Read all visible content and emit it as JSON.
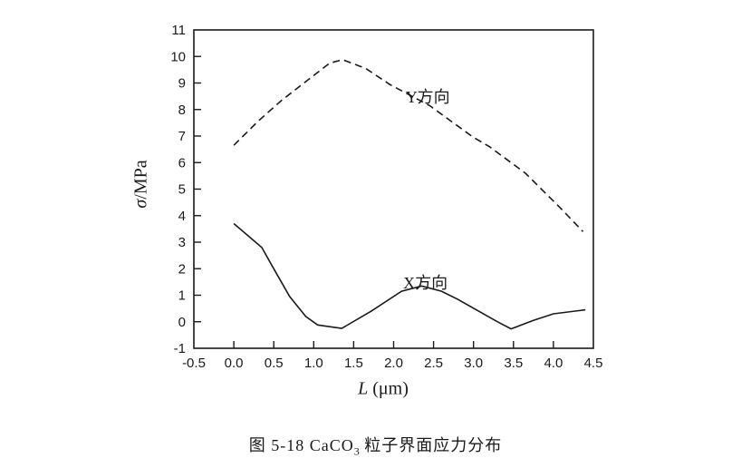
{
  "figure_caption": {
    "prefix": "图 5-18 CaCO",
    "subscript": "3",
    "suffix": " 粒子界面应力分布"
  },
  "chart_data": {
    "type": "line",
    "title": "",
    "xlabel": {
      "symbol": "L",
      "rest": " (μm)"
    },
    "ylabel": {
      "symbol": "σ",
      "rest": "/MPa"
    },
    "xlim": [
      -0.5,
      4.5
    ],
    "ylim": [
      -1,
      11
    ],
    "x_ticks": [
      -0.5,
      0.0,
      0.5,
      1.0,
      1.5,
      2.0,
      2.5,
      3.0,
      3.5,
      4.0,
      4.5
    ],
    "x_tick_labels": [
      "-0.5",
      "0.0",
      "0.5",
      "1.0",
      "1.5",
      "2.0",
      "2.5",
      "3.0",
      "3.5",
      "4.0",
      "4.5"
    ],
    "y_ticks": [
      -1,
      0,
      1,
      2,
      3,
      4,
      5,
      6,
      7,
      8,
      9,
      10,
      11
    ],
    "y_tick_labels": [
      "-1",
      "0",
      "1",
      "2",
      "3",
      "4",
      "5",
      "6",
      "7",
      "8",
      "9",
      "10",
      "11"
    ],
    "grid": false,
    "legend_position": "inline-annotations",
    "line_color": "#1a1a1a",
    "background_color": "#ffffff",
    "series": [
      {
        "name": "Y方向",
        "line_style": "dashed",
        "label_anchor": {
          "x": 2.15,
          "y": 8.26
        },
        "points": [
          [
            0.0,
            6.65
          ],
          [
            0.3,
            7.55
          ],
          [
            0.6,
            8.35
          ],
          [
            0.9,
            9.05
          ],
          [
            1.2,
            9.75
          ],
          [
            1.36,
            9.88
          ],
          [
            1.65,
            9.55
          ],
          [
            1.95,
            8.95
          ],
          [
            2.2,
            8.55
          ],
          [
            2.45,
            8.15
          ],
          [
            2.7,
            7.6
          ],
          [
            3.0,
            6.95
          ],
          [
            3.2,
            6.6
          ],
          [
            3.65,
            5.6
          ],
          [
            4.1,
            4.25
          ],
          [
            4.37,
            3.4
          ]
        ]
      },
      {
        "name": "X方向",
        "line_style": "solid",
        "label_anchor": {
          "x": 2.12,
          "y": 1.26
        },
        "points": [
          [
            0.0,
            3.7
          ],
          [
            0.35,
            2.8
          ],
          [
            0.5,
            2.0
          ],
          [
            0.7,
            0.95
          ],
          [
            0.9,
            0.2
          ],
          [
            1.05,
            -0.12
          ],
          [
            1.35,
            -0.25
          ],
          [
            1.72,
            0.4
          ],
          [
            2.1,
            1.15
          ],
          [
            2.35,
            1.35
          ],
          [
            2.6,
            1.15
          ],
          [
            2.8,
            0.85
          ],
          [
            3.3,
            0.0
          ],
          [
            3.47,
            -0.27
          ],
          [
            3.75,
            0.05
          ],
          [
            4.0,
            0.3
          ],
          [
            4.4,
            0.45
          ]
        ]
      }
    ]
  }
}
